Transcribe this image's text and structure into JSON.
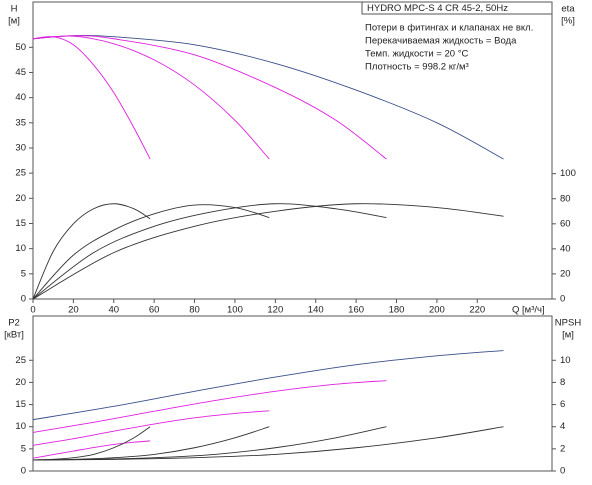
{
  "chart_data": [
    {
      "type": "line",
      "title": "HYDRO MPC-S 4 CR 45-2, 50Hz",
      "annotations": [
        "Потери в фитингах и клапанах не вкл.",
        "Перекачиваемая жидкость = Вода",
        "Темп. жидкости = 20 °C",
        "Плотность = 998.2 кг/м³"
      ],
      "ylabel": "H",
      "yunit": "[м]",
      "y2label": "eta",
      "y2unit": "[%]",
      "xlabel": "Q [м³/ч]",
      "xlim": [
        0,
        257
      ],
      "xticks": [
        0,
        20,
        40,
        60,
        80,
        100,
        120,
        140,
        160,
        180,
        200,
        220
      ],
      "ylim": [
        0,
        59
      ],
      "yticks": [
        0,
        5,
        10,
        15,
        20,
        25,
        30,
        35,
        40,
        45,
        50
      ],
      "y2lim": [
        0,
        237
      ],
      "y2ticks": [
        0,
        20,
        40,
        60,
        80,
        100
      ],
      "series": [
        {
          "color": "#3a4f8a",
          "x": [
            0,
            20,
            40,
            80,
            120,
            160,
            200,
            233
          ],
          "values": [
            51.7,
            52.3,
            52.1,
            50.5,
            46.8,
            41.5,
            35,
            27.8
          ]
        },
        {
          "color": "#e020e0",
          "x": [
            0,
            20,
            40,
            80,
            120,
            150,
            175
          ],
          "values": [
            51.7,
            52.3,
            51.7,
            48.5,
            42,
            35.5,
            27.8
          ]
        },
        {
          "color": "#e020e0",
          "x": [
            0,
            20,
            40,
            60,
            80,
            100,
            117
          ],
          "values": [
            51.7,
            52.2,
            50.7,
            47.5,
            42.5,
            35.5,
            27.8
          ]
        },
        {
          "color": "#e020e0",
          "x": [
            0,
            10,
            20,
            30,
            40,
            50,
            58
          ],
          "values": [
            51.7,
            52.1,
            50.5,
            46.5,
            41,
            34,
            27.8
          ]
        },
        {
          "color": "#333333",
          "axis": "y2",
          "x": [
            0,
            10,
            20,
            30,
            40,
            50,
            58
          ],
          "values": [
            0,
            38,
            60,
            72,
            76,
            72,
            64
          ]
        },
        {
          "color": "#333333",
          "axis": "y2",
          "x": [
            0,
            20,
            40,
            60,
            80,
            100,
            117
          ],
          "values": [
            0,
            35,
            55,
            68,
            75,
            73,
            65
          ]
        },
        {
          "color": "#333333",
          "axis": "y2",
          "x": [
            0,
            30,
            60,
            90,
            120,
            150,
            175
          ],
          "values": [
            0,
            37,
            58,
            70,
            76,
            72,
            65
          ]
        },
        {
          "color": "#333333",
          "axis": "y2",
          "x": [
            0,
            40,
            80,
            120,
            160,
            200,
            233
          ],
          "values": [
            0,
            37,
            58,
            70,
            76,
            73,
            66
          ]
        }
      ]
    },
    {
      "type": "line",
      "ylabel": "P2",
      "yunit": "[кВт]",
      "y2label": "NPSH",
      "y2unit": "[м]",
      "xlim": [
        0,
        257
      ],
      "ylim": [
        0,
        35
      ],
      "yticks": [
        0,
        5,
        10,
        15,
        20,
        25
      ],
      "y2lim": [
        0,
        14
      ],
      "y2ticks": [
        0,
        2,
        4,
        6,
        8,
        10
      ],
      "series": [
        {
          "color": "#3a4f8a",
          "x": [
            0,
            40,
            80,
            120,
            160,
            200,
            233
          ],
          "values": [
            11.6,
            14.6,
            18,
            21.2,
            24,
            26,
            27.2
          ]
        },
        {
          "color": "#e020e0",
          "x": [
            0,
            30,
            60,
            90,
            120,
            150,
            175
          ],
          "values": [
            8.7,
            11,
            13.5,
            15.9,
            18,
            19.6,
            20.4
          ]
        },
        {
          "color": "#e020e0",
          "x": [
            0,
            20,
            40,
            60,
            80,
            100,
            117
          ],
          "values": [
            5.8,
            7.3,
            9,
            10.6,
            12,
            13,
            13.6
          ]
        },
        {
          "color": "#e020e0",
          "x": [
            0,
            10,
            20,
            30,
            40,
            50,
            58
          ],
          "values": [
            2.9,
            3.7,
            4.5,
            5.3,
            6,
            6.5,
            6.8
          ]
        },
        {
          "color": "#333333",
          "axis": "y2",
          "x": [
            0,
            10,
            20,
            30,
            40,
            50,
            58
          ],
          "values": [
            1,
            1.05,
            1.2,
            1.5,
            2.1,
            3,
            4
          ]
        },
        {
          "color": "#333333",
          "axis": "y2",
          "x": [
            0,
            20,
            40,
            60,
            80,
            100,
            117
          ],
          "values": [
            1,
            1.05,
            1.2,
            1.5,
            2.1,
            3,
            4
          ]
        },
        {
          "color": "#333333",
          "axis": "y2",
          "x": [
            0,
            30,
            60,
            90,
            120,
            150,
            175
          ],
          "values": [
            1,
            1.05,
            1.2,
            1.5,
            2.1,
            3,
            4
          ]
        },
        {
          "color": "#333333",
          "axis": "y2",
          "x": [
            0,
            40,
            80,
            120,
            160,
            200,
            233
          ],
          "values": [
            1,
            1.05,
            1.2,
            1.5,
            2.1,
            3,
            4
          ]
        }
      ]
    }
  ]
}
